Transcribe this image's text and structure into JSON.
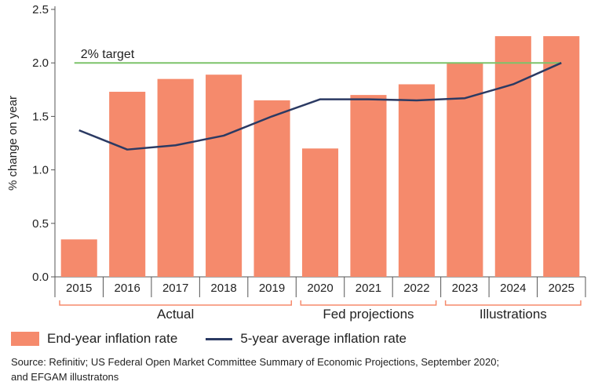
{
  "colors": {
    "bar": "#f58a6c",
    "avg_line": "#2b3a63",
    "target_line": "#7dc36a",
    "bracket": "#f58a6c",
    "axis": "#555555"
  },
  "chart_data": {
    "type": "bar",
    "title": "",
    "xlabel": "",
    "ylabel": "% change on year",
    "ylim": [
      0,
      2.5
    ],
    "yticks": [
      0,
      0.5,
      1,
      1.5,
      2,
      2.5
    ],
    "ytick_labels": [
      "0.0",
      "0.5",
      "1.0",
      "1.5",
      "2.0",
      "2.5"
    ],
    "grid": false,
    "categories": [
      "2015",
      "2016",
      "2017",
      "2018",
      "2019",
      "2020",
      "2021",
      "2022",
      "2023",
      "2024",
      "2025"
    ],
    "series": [
      {
        "name": "End-year inflation rate",
        "kind": "bar",
        "values": [
          0.35,
          1.73,
          1.85,
          1.89,
          1.65,
          1.2,
          1.7,
          1.8,
          2.0,
          2.25,
          2.25
        ]
      },
      {
        "name": "5-year average inflation rate",
        "kind": "line",
        "values": [
          1.37,
          1.19,
          1.23,
          1.32,
          1.5,
          1.66,
          1.66,
          1.65,
          1.67,
          1.8,
          2.0
        ]
      }
    ],
    "target": {
      "label": "2% target",
      "value": 2.0,
      "from_category_index": 0,
      "to_category_index": 10
    },
    "groups": [
      {
        "label": "Actual",
        "from": 0,
        "to": 4
      },
      {
        "label": "Fed projections",
        "from": 5,
        "to": 7
      },
      {
        "label": "Illustrations",
        "from": 8,
        "to": 10
      }
    ],
    "legend": {
      "placement": "bottom",
      "bar_label": "End-year inflation rate",
      "line_label": "5-year average inflation rate"
    }
  },
  "source": {
    "line1": "Source: Refinitiv; US Federal Open Market Committee Summary of Economic Projections, September 2020;",
    "line2": "and EFGAM illustratons"
  }
}
